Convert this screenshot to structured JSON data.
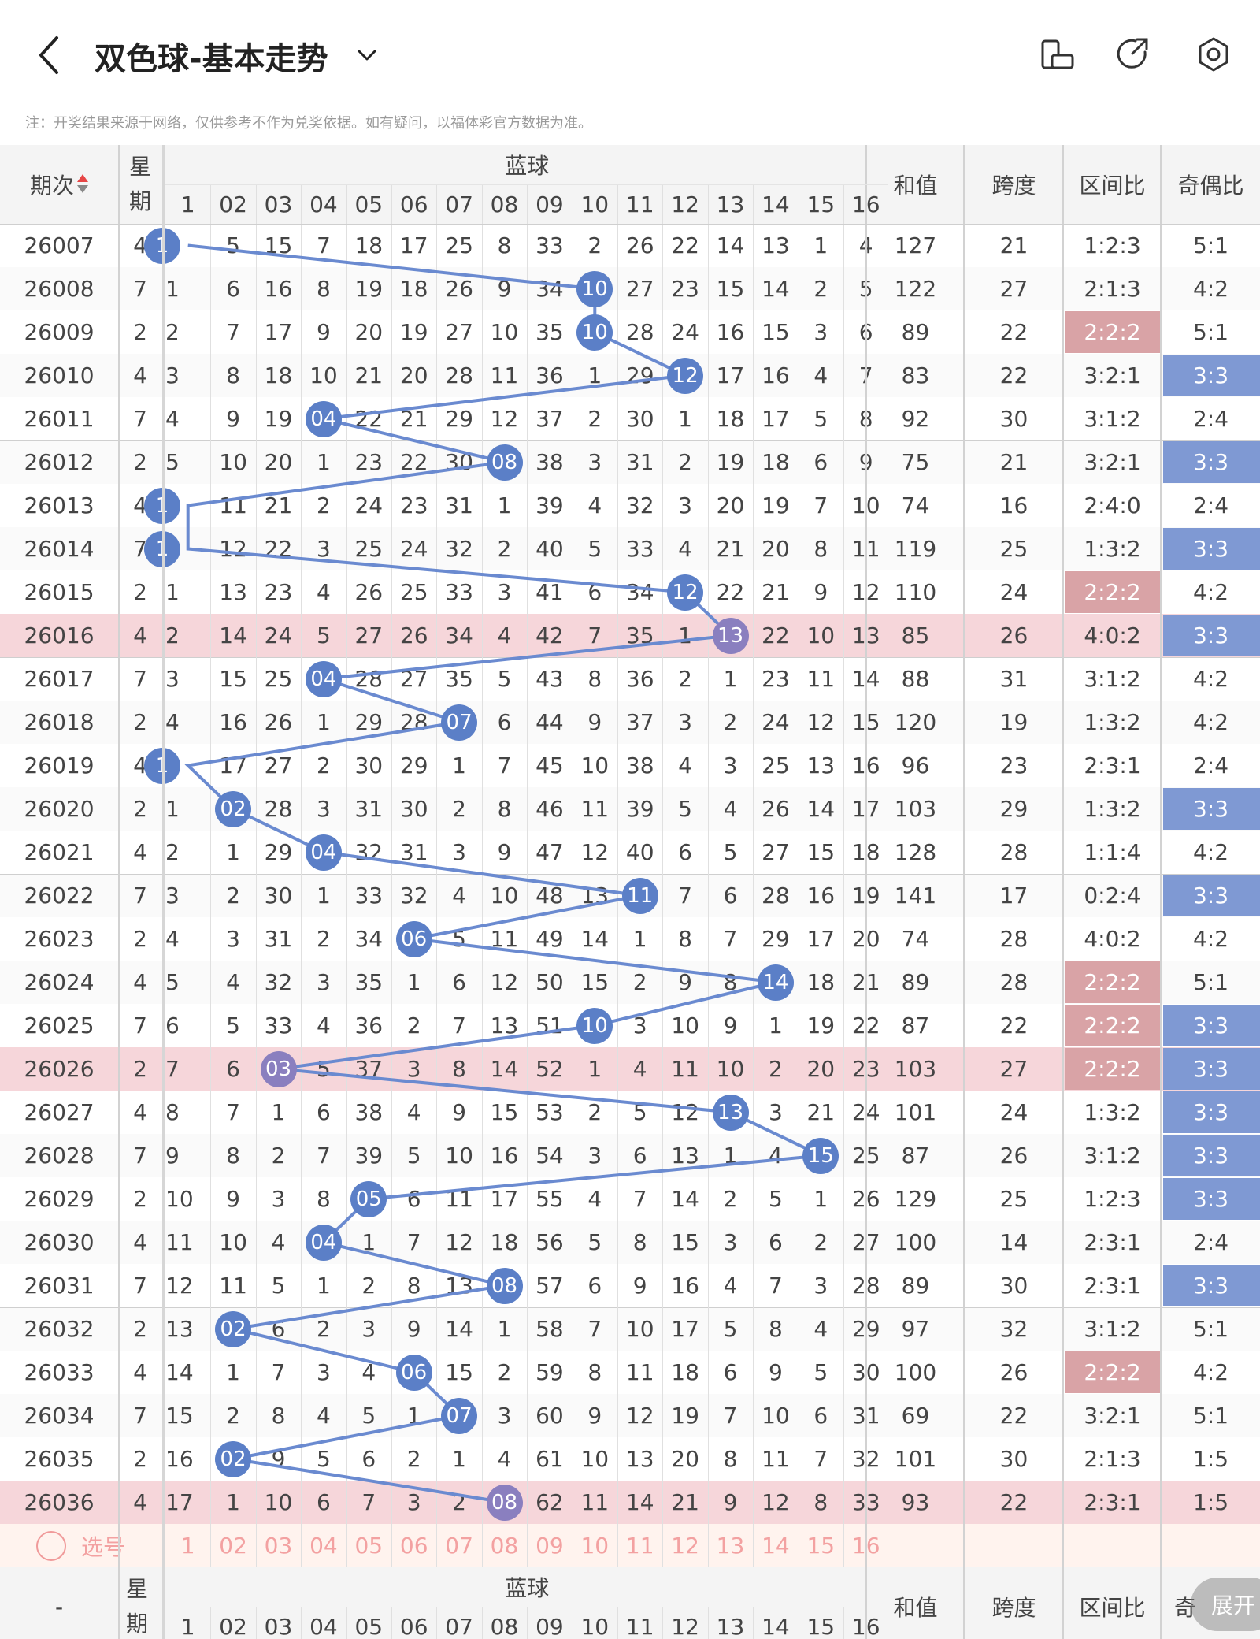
{
  "header": {
    "title": "双色球-基本走势",
    "icons": [
      "back-arrow-icon",
      "chevron-down-icon",
      "phone-rotate-icon",
      "share-icon",
      "settings-icon"
    ]
  },
  "notice": "注：开奖结果来源于网络，仅供参考不作为兑奖依据。如有疑问，以福体彩官方数据为准。",
  "table": {
    "col_period": "期次",
    "col_week": "星期",
    "blue_group": "蓝球",
    "blue_numbers": [
      "1",
      "02",
      "03",
      "04",
      "05",
      "06",
      "07",
      "08",
      "09",
      "10",
      "11",
      "12",
      "13",
      "14",
      "15",
      "16"
    ],
    "col_sum": "和值",
    "col_span": "跨度",
    "col_zone": "区间比",
    "col_oddeven": "奇偶比",
    "rows": [
      {
        "p": "26007",
        "w": "4",
        "blue": 1,
        "c": [
          "1",
          "5",
          "15",
          "7",
          "18",
          "17",
          "25",
          "8",
          "33",
          "2",
          "26",
          "22",
          "14",
          "13",
          "1",
          "4"
        ],
        "sum": "127",
        "span": "21",
        "zone": "1:2:3",
        "oe": "5:1"
      },
      {
        "p": "26008",
        "w": "7",
        "blue": 10,
        "c": [
          "1",
          "6",
          "16",
          "8",
          "19",
          "18",
          "26",
          "9",
          "34",
          "10",
          "27",
          "23",
          "15",
          "14",
          "2",
          "5"
        ],
        "sum": "122",
        "span": "27",
        "zone": "2:1:3",
        "oe": "4:2"
      },
      {
        "p": "26009",
        "w": "2",
        "blue": 10,
        "c": [
          "2",
          "7",
          "17",
          "9",
          "20",
          "19",
          "27",
          "10",
          "35",
          "10",
          "28",
          "24",
          "16",
          "15",
          "3",
          "6"
        ],
        "sum": "89",
        "span": "22",
        "zone": "2:2:2",
        "oe": "5:1"
      },
      {
        "p": "26010",
        "w": "4",
        "blue": 12,
        "c": [
          "3",
          "8",
          "18",
          "10",
          "21",
          "20",
          "28",
          "11",
          "36",
          "1",
          "29",
          "12",
          "17",
          "16",
          "4",
          "7"
        ],
        "sum": "83",
        "span": "22",
        "zone": "3:2:1",
        "oe": "3:3"
      },
      {
        "p": "26011",
        "w": "7",
        "blue": 4,
        "c": [
          "4",
          "9",
          "19",
          "04",
          "22",
          "21",
          "29",
          "12",
          "37",
          "2",
          "30",
          "1",
          "18",
          "17",
          "5",
          "8"
        ],
        "sum": "92",
        "span": "30",
        "zone": "3:1:2",
        "oe": "2:4"
      },
      {
        "p": "26012",
        "w": "2",
        "blue": 8,
        "c": [
          "5",
          "10",
          "20",
          "1",
          "23",
          "22",
          "30",
          "08",
          "38",
          "3",
          "31",
          "2",
          "19",
          "18",
          "6",
          "9"
        ],
        "sum": "75",
        "span": "21",
        "zone": "3:2:1",
        "oe": "3:3"
      },
      {
        "p": "26013",
        "w": "4",
        "blue": 1,
        "c": [
          "1",
          "11",
          "21",
          "2",
          "24",
          "23",
          "31",
          "1",
          "39",
          "4",
          "32",
          "3",
          "20",
          "19",
          "7",
          "10"
        ],
        "sum": "74",
        "span": "16",
        "zone": "2:4:0",
        "oe": "2:4"
      },
      {
        "p": "26014",
        "w": "7",
        "blue": 1,
        "c": [
          "1",
          "12",
          "22",
          "3",
          "25",
          "24",
          "32",
          "2",
          "40",
          "5",
          "33",
          "4",
          "21",
          "20",
          "8",
          "11"
        ],
        "sum": "119",
        "span": "25",
        "zone": "1:3:2",
        "oe": "3:3"
      },
      {
        "p": "26015",
        "w": "2",
        "blue": 12,
        "c": [
          "1",
          "13",
          "23",
          "4",
          "26",
          "25",
          "33",
          "3",
          "41",
          "6",
          "34",
          "12",
          "22",
          "21",
          "9",
          "12"
        ],
        "sum": "110",
        "span": "24",
        "zone": "2:2:2",
        "oe": "4:2"
      },
      {
        "p": "26016",
        "w": "4",
        "blue": 13,
        "c": [
          "2",
          "14",
          "24",
          "5",
          "27",
          "26",
          "34",
          "4",
          "42",
          "7",
          "35",
          "1",
          "13",
          "22",
          "10",
          "13"
        ],
        "sum": "85",
        "span": "26",
        "zone": "4:0:2",
        "oe": "3:3"
      },
      {
        "p": "26017",
        "w": "7",
        "blue": 4,
        "c": [
          "3",
          "15",
          "25",
          "04",
          "28",
          "27",
          "35",
          "5",
          "43",
          "8",
          "36",
          "2",
          "1",
          "23",
          "11",
          "14"
        ],
        "sum": "88",
        "span": "31",
        "zone": "3:1:2",
        "oe": "4:2"
      },
      {
        "p": "26018",
        "w": "2",
        "blue": 7,
        "c": [
          "4",
          "16",
          "26",
          "1",
          "29",
          "28",
          "07",
          "6",
          "44",
          "9",
          "37",
          "3",
          "2",
          "24",
          "12",
          "15"
        ],
        "sum": "120",
        "span": "19",
        "zone": "1:3:2",
        "oe": "4:2"
      },
      {
        "p": "26019",
        "w": "4",
        "blue": 1,
        "c": [
          "1",
          "17",
          "27",
          "2",
          "30",
          "29",
          "1",
          "7",
          "45",
          "10",
          "38",
          "4",
          "3",
          "25",
          "13",
          "16"
        ],
        "sum": "96",
        "span": "23",
        "zone": "2:3:1",
        "oe": "2:4"
      },
      {
        "p": "26020",
        "w": "2",
        "blue": 2,
        "c": [
          "1",
          "02",
          "28",
          "3",
          "31",
          "30",
          "2",
          "8",
          "46",
          "11",
          "39",
          "5",
          "4",
          "26",
          "14",
          "17"
        ],
        "sum": "103",
        "span": "29",
        "zone": "1:3:2",
        "oe": "3:3"
      },
      {
        "p": "26021",
        "w": "4",
        "blue": 4,
        "c": [
          "2",
          "1",
          "29",
          "04",
          "32",
          "31",
          "3",
          "9",
          "47",
          "12",
          "40",
          "6",
          "5",
          "27",
          "15",
          "18"
        ],
        "sum": "128",
        "span": "28",
        "zone": "1:1:4",
        "oe": "4:2"
      },
      {
        "p": "26022",
        "w": "7",
        "blue": 11,
        "c": [
          "3",
          "2",
          "30",
          "1",
          "33",
          "32",
          "4",
          "10",
          "48",
          "13",
          "11",
          "7",
          "6",
          "28",
          "16",
          "19"
        ],
        "sum": "141",
        "span": "17",
        "zone": "0:2:4",
        "oe": "3:3"
      },
      {
        "p": "26023",
        "w": "2",
        "blue": 6,
        "c": [
          "4",
          "3",
          "31",
          "2",
          "34",
          "06",
          "5",
          "11",
          "49",
          "14",
          "1",
          "8",
          "7",
          "29",
          "17",
          "20"
        ],
        "sum": "74",
        "span": "28",
        "zone": "4:0:2",
        "oe": "4:2"
      },
      {
        "p": "26024",
        "w": "4",
        "blue": 14,
        "c": [
          "5",
          "4",
          "32",
          "3",
          "35",
          "1",
          "6",
          "12",
          "50",
          "15",
          "2",
          "9",
          "8",
          "14",
          "18",
          "21"
        ],
        "sum": "89",
        "span": "28",
        "zone": "2:2:2",
        "oe": "5:1"
      },
      {
        "p": "26025",
        "w": "7",
        "blue": 10,
        "c": [
          "6",
          "5",
          "33",
          "4",
          "36",
          "2",
          "7",
          "13",
          "51",
          "10",
          "3",
          "10",
          "9",
          "1",
          "19",
          "22"
        ],
        "sum": "87",
        "span": "22",
        "zone": "2:2:2",
        "oe": "3:3"
      },
      {
        "p": "26026",
        "w": "2",
        "blue": 3,
        "c": [
          "7",
          "6",
          "03",
          "5",
          "37",
          "3",
          "8",
          "14",
          "52",
          "1",
          "4",
          "11",
          "10",
          "2",
          "20",
          "23"
        ],
        "sum": "103",
        "span": "27",
        "zone": "2:2:2",
        "oe": "3:3"
      },
      {
        "p": "26027",
        "w": "4",
        "blue": 13,
        "c": [
          "8",
          "7",
          "1",
          "6",
          "38",
          "4",
          "9",
          "15",
          "53",
          "2",
          "5",
          "12",
          "13",
          "3",
          "21",
          "24"
        ],
        "sum": "101",
        "span": "24",
        "zone": "1:3:2",
        "oe": "3:3"
      },
      {
        "p": "26028",
        "w": "7",
        "blue": 15,
        "c": [
          "9",
          "8",
          "2",
          "7",
          "39",
          "5",
          "10",
          "16",
          "54",
          "3",
          "6",
          "13",
          "1",
          "4",
          "15",
          "25"
        ],
        "sum": "87",
        "span": "26",
        "zone": "3:1:2",
        "oe": "3:3"
      },
      {
        "p": "26029",
        "w": "2",
        "blue": 5,
        "c": [
          "10",
          "9",
          "3",
          "8",
          "05",
          "6",
          "11",
          "17",
          "55",
          "4",
          "7",
          "14",
          "2",
          "5",
          "1",
          "26"
        ],
        "sum": "129",
        "span": "25",
        "zone": "1:2:3",
        "oe": "3:3"
      },
      {
        "p": "26030",
        "w": "4",
        "blue": 4,
        "c": [
          "11",
          "10",
          "4",
          "04",
          "1",
          "7",
          "12",
          "18",
          "56",
          "5",
          "8",
          "15",
          "3",
          "6",
          "2",
          "27"
        ],
        "sum": "100",
        "span": "14",
        "zone": "2:3:1",
        "oe": "2:4"
      },
      {
        "p": "26031",
        "w": "7",
        "blue": 8,
        "c": [
          "12",
          "11",
          "5",
          "1",
          "2",
          "8",
          "13",
          "08",
          "57",
          "6",
          "9",
          "16",
          "4",
          "7",
          "3",
          "28"
        ],
        "sum": "89",
        "span": "30",
        "zone": "2:3:1",
        "oe": "3:3"
      },
      {
        "p": "26032",
        "w": "2",
        "blue": 2,
        "c": [
          "13",
          "02",
          "6",
          "2",
          "3",
          "9",
          "14",
          "1",
          "58",
          "7",
          "10",
          "17",
          "5",
          "8",
          "4",
          "29"
        ],
        "sum": "97",
        "span": "32",
        "zone": "3:1:2",
        "oe": "5:1"
      },
      {
        "p": "26033",
        "w": "4",
        "blue": 6,
        "c": [
          "14",
          "1",
          "7",
          "3",
          "4",
          "06",
          "15",
          "2",
          "59",
          "8",
          "11",
          "18",
          "6",
          "9",
          "5",
          "30"
        ],
        "sum": "100",
        "span": "26",
        "zone": "2:2:2",
        "oe": "4:2"
      },
      {
        "p": "26034",
        "w": "7",
        "blue": 7,
        "c": [
          "15",
          "2",
          "8",
          "4",
          "5",
          "1",
          "07",
          "3",
          "60",
          "9",
          "12",
          "19",
          "7",
          "10",
          "6",
          "31"
        ],
        "sum": "69",
        "span": "22",
        "zone": "3:2:1",
        "oe": "5:1"
      },
      {
        "p": "26035",
        "w": "2",
        "blue": 2,
        "c": [
          "16",
          "02",
          "9",
          "5",
          "6",
          "2",
          "1",
          "4",
          "61",
          "10",
          "13",
          "20",
          "8",
          "11",
          "7",
          "32"
        ],
        "sum": "101",
        "span": "30",
        "zone": "2:1:3",
        "oe": "1:5"
      },
      {
        "p": "26036",
        "w": "4",
        "blue": 8,
        "c": [
          "17",
          "1",
          "10",
          "6",
          "7",
          "3",
          "2",
          "08",
          "62",
          "11",
          "14",
          "21",
          "9",
          "12",
          "8",
          "33"
        ],
        "sum": "93",
        "span": "22",
        "zone": "2:3:1",
        "oe": "1:5"
      }
    ],
    "pick_row": {
      "label": "选号",
      "numbers": [
        "1",
        "02",
        "03",
        "04",
        "05",
        "06",
        "07",
        "08",
        "09",
        "10",
        "11",
        "12",
        "13",
        "14",
        "15",
        "16"
      ]
    },
    "footer_header": {
      "period": "-",
      "week": "星期",
      "blue_group": "蓝球",
      "blue_numbers": [
        "1",
        "02",
        "03",
        "04",
        "05",
        "06",
        "07",
        "08",
        "09",
        "10",
        "11",
        "12",
        "13",
        "14",
        "15",
        "16"
      ],
      "sum": "和值",
      "span": "跨度",
      "zone": "区间比",
      "oddeven": "奇"
    }
  },
  "expand_button": "展开",
  "colors": {
    "ball": "#5b7fc7",
    "ball_highlight": "#8a7fbf",
    "trend_line": "#6a8ad0",
    "highlight_row": "#f6d6da",
    "zone_highlight": "#d9a3a6",
    "oe_highlight": "#7f99d3",
    "pick_text": "#f3a1a1"
  }
}
